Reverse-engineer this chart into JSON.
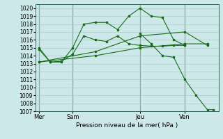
{
  "bg_color": "#cce8e8",
  "grid_color": "#aacccc",
  "line_color": "#1a6b1a",
  "title": "Pression niveau de la mer( hPa )",
  "ylim": [
    1007,
    1020.5
  ],
  "yticks": [
    1007,
    1008,
    1009,
    1010,
    1011,
    1012,
    1013,
    1014,
    1015,
    1016,
    1017,
    1018,
    1019,
    1020
  ],
  "xtick_labels": [
    "Mer",
    "Sam",
    "Jeu",
    "Ven"
  ],
  "xtick_positions": [
    0,
    3,
    9,
    13
  ],
  "vlines": [
    0,
    3,
    9,
    13
  ],
  "xlim": [
    -0.3,
    16
  ],
  "series": [
    {
      "x": [
        0,
        1,
        2,
        3,
        4,
        5,
        6,
        7,
        8,
        9,
        10,
        11,
        12,
        13
      ],
      "y": [
        1014.8,
        1013.2,
        1013.2,
        1015.0,
        1018.0,
        1018.2,
        1018.2,
        1017.3,
        1019.0,
        1020.0,
        1019.0,
        1018.8,
        1016.0,
        1015.3
      ]
    },
    {
      "x": [
        0,
        1,
        2,
        3,
        4,
        5,
        6,
        7,
        8,
        9,
        10,
        11,
        12,
        13
      ],
      "y": [
        1015.0,
        1013.2,
        1013.3,
        1014.2,
        1016.5,
        1016.0,
        1015.8,
        1016.5,
        1015.5,
        1015.3,
        1015.2,
        1015.2,
        1015.3,
        1015.3
      ]
    },
    {
      "x": [
        0,
        5,
        9,
        13,
        15
      ],
      "y": [
        1013.2,
        1014.0,
        1015.0,
        1015.5,
        1015.5
      ]
    },
    {
      "x": [
        0,
        5,
        9,
        13,
        15
      ],
      "y": [
        1013.2,
        1014.5,
        1016.5,
        1017.0,
        1015.3
      ]
    },
    {
      "x": [
        9,
        10,
        11,
        12,
        13,
        14,
        15,
        15.5
      ],
      "y": [
        1016.8,
        1015.5,
        1014.0,
        1013.8,
        1011.0,
        1009.0,
        1007.2,
        1007.2
      ]
    }
  ]
}
